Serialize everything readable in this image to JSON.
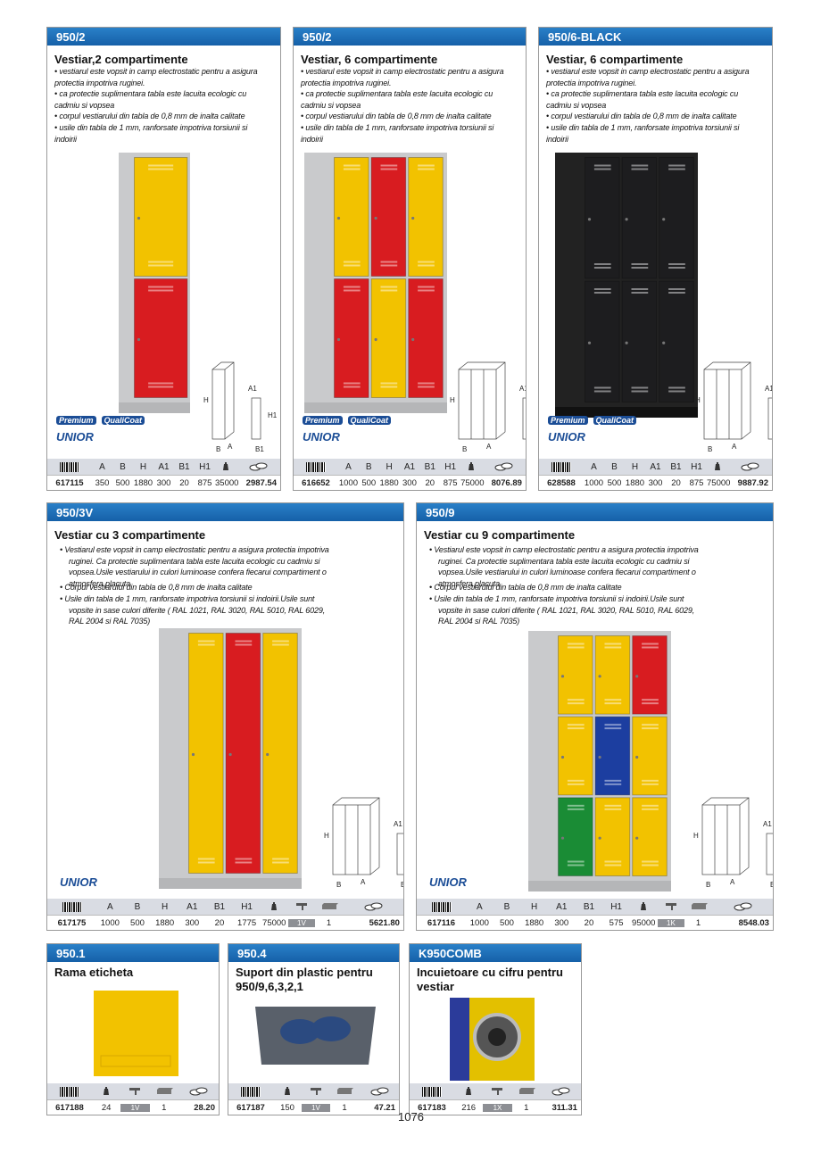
{
  "page_number": "1076",
  "brand": "UNIOR",
  "badges": [
    "Premium",
    "QualiCoat"
  ],
  "dimension_labels": [
    "H",
    "A1",
    "H1",
    "B",
    "A",
    "B1"
  ],
  "products": [
    {
      "code": "950/2",
      "title": "Vestiar,2 compartimente",
      "bullets": [
        "• vestiarul este vopsit in camp electrostatic pentru a asigura protectia impotriva ruginei.",
        "• ca protectie suplimentara tabla este lacuita ecologic cu cadmiu si vopsea",
        "• corpul vestiarului din tabla de 0,8 mm de inalta calitate",
        "• usile din tabla de 1 mm, ranforsate impotriva torsiunii si indoirii"
      ],
      "columns": [
        "A",
        "B",
        "H",
        "A1",
        "B1",
        "H1"
      ],
      "row": [
        "617115",
        "350",
        "500",
        "1880",
        "300",
        "20",
        "875",
        "35000",
        "2987.54"
      ]
    },
    {
      "code": "950/2",
      "title": "Vestiar, 6 compartimente",
      "bullets": [
        "• vestiarul este vopsit in camp electrostatic pentru a asigura protectia impotriva ruginei.",
        "• ca protectie suplimentara tabla este lacuita ecologic cu cadmiu si vopsea",
        "• corpul vestiarului din tabla de 0,8 mm de inalta calitate",
        "• usile din tabla de 1 mm, ranforsate impotriva torsiunii si indoirii"
      ],
      "columns": [
        "A",
        "B",
        "H",
        "A1",
        "B1",
        "H1"
      ],
      "row": [
        "616652",
        "1000",
        "500",
        "1880",
        "300",
        "20",
        "875",
        "75000",
        "8076.89"
      ]
    },
    {
      "code": "950/6-BLACK",
      "title": "Vestiar, 6 compartimente",
      "bullets": [
        "• vestiarul este vopsit in camp electrostatic pentru a asigura protectia impotriva ruginei.",
        "• ca protectie suplimentara tabla este lacuita ecologic cu cadmiu si vopsea",
        "• corpul vestiarului din tabla de 0,8 mm de inalta calitate",
        "• usile din tabla de 1 mm, ranforsate impotriva torsiunii si indoirii"
      ],
      "columns": [
        "A",
        "B",
        "H",
        "A1",
        "B1",
        "H1"
      ],
      "row": [
        "628588",
        "1000",
        "500",
        "1880",
        "300",
        "20",
        "875",
        "75000",
        "9887.92"
      ]
    },
    {
      "code": "950/3V",
      "title": "Vestiar cu 3 compartimente",
      "bullets": [
        "• Vestiarul este vopsit in camp electrostatic pentru a asigura protectia impotriva ruginei. Ca protectie suplimentara tabla este lacuita ecologic cu cadmiu si vopsea.Usile vestiarului in culori luminoase confera fiecarui compartiment o atmosfera placuta",
        "• Corpul vestiarului din tabla de 0,8 mm de inalta calitate",
        "• Usile din tabla de 1 mm, ranforsate impotriva torsiunii si indoirii.Usile sunt vopsite in sase culori diferite ( RAL 1021, RAL 3020, RAL 5010, RAL 6029, RAL 2004 si RAL 7035)"
      ],
      "columns": [
        "A",
        "B",
        "H",
        "A1",
        "B1",
        "H1"
      ],
      "row": [
        "617175",
        "1000",
        "500",
        "1880",
        "300",
        "20",
        "1775",
        "75000",
        "1V",
        "1",
        "5621.80"
      ]
    },
    {
      "code": "950/9",
      "title": "Vestiar cu 9 compartimente",
      "bullets": [
        "• Vestiarul este vopsit in camp electrostatic pentru a asigura protectia impotriva ruginei. Ca protectie suplimentara tabla este lacuita ecologic cu cadmiu si vopsea.Usile vestiarului in culori luminoase confera fiecarui compartiment o atmosfera placuta",
        "• Corpul vestiarului din tabla de 0,8 mm de inalta calitate",
        "• Usile din tabla de 1 mm, ranforsate impotriva torsiunii si indoirii.Usile sunt vopsite in sase culori diferite ( RAL 1021, RAL 3020, RAL 5010, RAL 6029, RAL 2004 si RAL 7035)"
      ],
      "columns": [
        "A",
        "B",
        "H",
        "A1",
        "B1",
        "H1"
      ],
      "row": [
        "617116",
        "1000",
        "500",
        "1880",
        "300",
        "20",
        "575",
        "95000",
        "1K",
        "1",
        "8548.03"
      ]
    },
    {
      "code": "950.1",
      "title": "Rama eticheta",
      "columns": [],
      "row": [
        "617188",
        "24",
        "1V",
        "1",
        "28.20"
      ]
    },
    {
      "code": "950.4",
      "title": "Suport din plastic pentru  950/9,6,3,2,1",
      "columns": [],
      "row": [
        "617187",
        "150",
        "1V",
        "1",
        "47.21"
      ]
    },
    {
      "code": "K950COMB",
      "title": "Incuietoare cu cifru pentru vestiar",
      "columns": [],
      "row": [
        "617183",
        "216",
        "1X",
        "1",
        "311.31"
      ]
    }
  ]
}
